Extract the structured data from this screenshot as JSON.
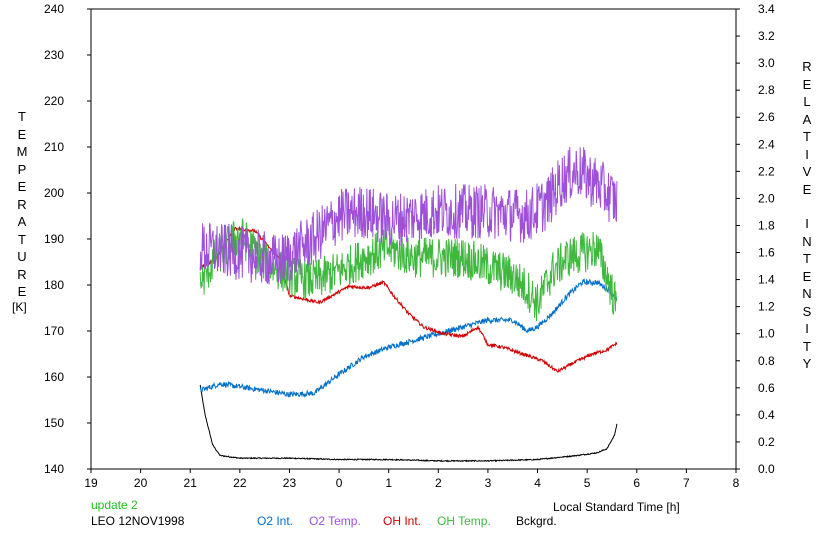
{
  "chart_data": {
    "type": "line",
    "x_axis": {
      "label": "Local Standard Time [h]",
      "range": [
        19,
        32
      ],
      "ticks": [
        19,
        20,
        21,
        22,
        23,
        24,
        25,
        26,
        27,
        28,
        29,
        30,
        31,
        32
      ],
      "tick_labels": [
        "19",
        "20",
        "21",
        "22",
        "23",
        "0",
        "1",
        "2",
        "3",
        "4",
        "5",
        "6",
        "7",
        "8"
      ]
    },
    "y_left": {
      "label_letters": [
        "T",
        "E",
        "M",
        "P",
        "E",
        "R",
        "A",
        "T",
        "U",
        "R",
        "E"
      ],
      "unit": "[K]",
      "range": [
        140,
        240
      ],
      "ticks": [
        140,
        150,
        160,
        170,
        180,
        190,
        200,
        210,
        220,
        230,
        240
      ]
    },
    "y_right": {
      "label_word1": [
        "R",
        "E",
        "L",
        "A",
        "T",
        "I",
        "V",
        "E"
      ],
      "label_word2": [
        "I",
        "N",
        "T",
        "E",
        "N",
        "S",
        "I",
        "T",
        "Y"
      ],
      "range": [
        0.0,
        3.4
      ],
      "ticks": [
        "0.0",
        "0.2",
        "0.4",
        "0.6",
        "0.8",
        "1.0",
        "1.2",
        "1.4",
        "1.6",
        "1.8",
        "2.0",
        "2.2",
        "2.4",
        "2.6",
        "2.8",
        "3.0",
        "3.2",
        "3.4"
      ]
    },
    "notes": {
      "update": "update 2",
      "station": "LEO 12NOV1998"
    },
    "series": [
      {
        "name": "O2 Int.",
        "axis": "right",
        "color": "#0070c8",
        "noise": 0.02,
        "x": [
          21.2,
          21.6,
          22.5,
          23.0,
          23.5,
          24.0,
          24.5,
          25.0,
          25.5,
          26.0,
          26.5,
          27.0,
          27.5,
          27.8,
          28.0,
          28.3,
          28.6,
          28.9,
          29.2,
          29.45,
          29.6
        ],
        "y": [
          0.58,
          0.63,
          0.58,
          0.55,
          0.56,
          0.7,
          0.83,
          0.9,
          0.95,
          1.0,
          1.05,
          1.1,
          1.1,
          1.02,
          1.05,
          1.15,
          1.28,
          1.38,
          1.38,
          1.32,
          1.25
        ]
      },
      {
        "name": "O2 Temp.",
        "axis": "left",
        "color": "#9e50d8",
        "noise": 6.0,
        "x": [
          21.2,
          22.0,
          22.8,
          23.5,
          24.0,
          24.5,
          25.0,
          26.0,
          27.0,
          27.8,
          28.2,
          28.5,
          28.8,
          29.2,
          29.6
        ],
        "y": [
          188,
          187,
          185,
          190,
          195,
          196,
          194,
          196,
          196,
          195,
          198,
          203,
          205,
          202,
          198
        ]
      },
      {
        "name": "OH Int.",
        "axis": "right",
        "color": "#d00000",
        "noise": 0.012,
        "x": [
          21.2,
          21.5,
          21.9,
          22.3,
          22.8,
          23.0,
          23.6,
          24.2,
          24.6,
          24.9,
          25.1,
          25.4,
          25.7,
          26.1,
          26.5,
          26.8,
          27.0,
          27.3,
          27.7,
          28.1,
          28.4,
          28.7,
          29.1,
          29.4,
          29.6
        ],
        "y": [
          1.48,
          1.55,
          1.78,
          1.76,
          1.55,
          1.28,
          1.23,
          1.35,
          1.34,
          1.38,
          1.28,
          1.15,
          1.05,
          1.0,
          0.98,
          1.05,
          0.92,
          0.9,
          0.85,
          0.8,
          0.72,
          0.78,
          0.85,
          0.88,
          0.93
        ]
      },
      {
        "name": "OH Temp.",
        "axis": "left",
        "color": "#40b840",
        "noise": 4.5,
        "x": [
          21.2,
          21.5,
          22.0,
          22.5,
          23.0,
          23.5,
          24.0,
          24.5,
          25.0,
          25.5,
          26.0,
          26.5,
          27.0,
          27.5,
          27.8,
          28.0,
          28.3,
          28.6,
          28.9,
          29.2,
          29.4,
          29.6
        ],
        "y": [
          180,
          186,
          191,
          185,
          182,
          181,
          183,
          186,
          188,
          186,
          186,
          186,
          184,
          182,
          179,
          176,
          183,
          186,
          187,
          188,
          182,
          175
        ]
      },
      {
        "name": "Bckgrd.",
        "axis": "right",
        "color": "#000000",
        "noise": 0.004,
        "x": [
          21.2,
          21.3,
          21.45,
          21.6,
          22.0,
          23.0,
          24.0,
          25.0,
          26.0,
          27.0,
          28.0,
          28.8,
          29.2,
          29.4,
          29.55,
          29.6
        ],
        "y": [
          0.62,
          0.4,
          0.18,
          0.1,
          0.08,
          0.08,
          0.07,
          0.07,
          0.06,
          0.06,
          0.07,
          0.1,
          0.12,
          0.15,
          0.25,
          0.33
        ]
      }
    ]
  }
}
